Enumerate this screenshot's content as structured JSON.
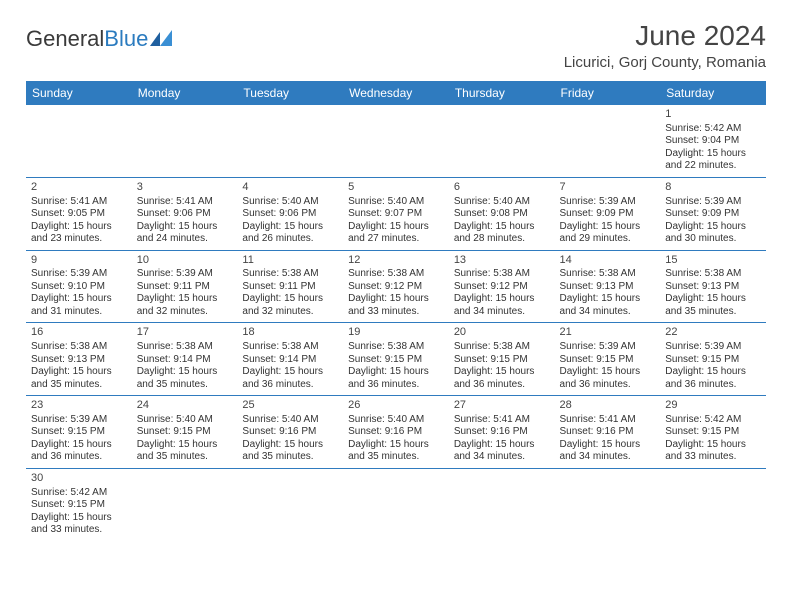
{
  "logo": {
    "text_gray": "General",
    "text_blue": "Blue"
  },
  "header": {
    "title": "June 2024",
    "location": "Licurici, Gorj County, Romania"
  },
  "colors": {
    "header_bg": "#2f7bbf",
    "header_fg": "#ffffff",
    "border": "#2f7bbf"
  },
  "weekdays": [
    "Sunday",
    "Monday",
    "Tuesday",
    "Wednesday",
    "Thursday",
    "Friday",
    "Saturday"
  ],
  "weeks": [
    [
      null,
      null,
      null,
      null,
      null,
      null,
      {
        "n": "1",
        "rise": "Sunrise: 5:42 AM",
        "set": "Sunset: 9:04 PM",
        "day": "Daylight: 15 hours and 22 minutes."
      }
    ],
    [
      {
        "n": "2",
        "rise": "Sunrise: 5:41 AM",
        "set": "Sunset: 9:05 PM",
        "day": "Daylight: 15 hours and 23 minutes."
      },
      {
        "n": "3",
        "rise": "Sunrise: 5:41 AM",
        "set": "Sunset: 9:06 PM",
        "day": "Daylight: 15 hours and 24 minutes."
      },
      {
        "n": "4",
        "rise": "Sunrise: 5:40 AM",
        "set": "Sunset: 9:06 PM",
        "day": "Daylight: 15 hours and 26 minutes."
      },
      {
        "n": "5",
        "rise": "Sunrise: 5:40 AM",
        "set": "Sunset: 9:07 PM",
        "day": "Daylight: 15 hours and 27 minutes."
      },
      {
        "n": "6",
        "rise": "Sunrise: 5:40 AM",
        "set": "Sunset: 9:08 PM",
        "day": "Daylight: 15 hours and 28 minutes."
      },
      {
        "n": "7",
        "rise": "Sunrise: 5:39 AM",
        "set": "Sunset: 9:09 PM",
        "day": "Daylight: 15 hours and 29 minutes."
      },
      {
        "n": "8",
        "rise": "Sunrise: 5:39 AM",
        "set": "Sunset: 9:09 PM",
        "day": "Daylight: 15 hours and 30 minutes."
      }
    ],
    [
      {
        "n": "9",
        "rise": "Sunrise: 5:39 AM",
        "set": "Sunset: 9:10 PM",
        "day": "Daylight: 15 hours and 31 minutes."
      },
      {
        "n": "10",
        "rise": "Sunrise: 5:39 AM",
        "set": "Sunset: 9:11 PM",
        "day": "Daylight: 15 hours and 32 minutes."
      },
      {
        "n": "11",
        "rise": "Sunrise: 5:38 AM",
        "set": "Sunset: 9:11 PM",
        "day": "Daylight: 15 hours and 32 minutes."
      },
      {
        "n": "12",
        "rise": "Sunrise: 5:38 AM",
        "set": "Sunset: 9:12 PM",
        "day": "Daylight: 15 hours and 33 minutes."
      },
      {
        "n": "13",
        "rise": "Sunrise: 5:38 AM",
        "set": "Sunset: 9:12 PM",
        "day": "Daylight: 15 hours and 34 minutes."
      },
      {
        "n": "14",
        "rise": "Sunrise: 5:38 AM",
        "set": "Sunset: 9:13 PM",
        "day": "Daylight: 15 hours and 34 minutes."
      },
      {
        "n": "15",
        "rise": "Sunrise: 5:38 AM",
        "set": "Sunset: 9:13 PM",
        "day": "Daylight: 15 hours and 35 minutes."
      }
    ],
    [
      {
        "n": "16",
        "rise": "Sunrise: 5:38 AM",
        "set": "Sunset: 9:13 PM",
        "day": "Daylight: 15 hours and 35 minutes."
      },
      {
        "n": "17",
        "rise": "Sunrise: 5:38 AM",
        "set": "Sunset: 9:14 PM",
        "day": "Daylight: 15 hours and 35 minutes."
      },
      {
        "n": "18",
        "rise": "Sunrise: 5:38 AM",
        "set": "Sunset: 9:14 PM",
        "day": "Daylight: 15 hours and 36 minutes."
      },
      {
        "n": "19",
        "rise": "Sunrise: 5:38 AM",
        "set": "Sunset: 9:15 PM",
        "day": "Daylight: 15 hours and 36 minutes."
      },
      {
        "n": "20",
        "rise": "Sunrise: 5:38 AM",
        "set": "Sunset: 9:15 PM",
        "day": "Daylight: 15 hours and 36 minutes."
      },
      {
        "n": "21",
        "rise": "Sunrise: 5:39 AM",
        "set": "Sunset: 9:15 PM",
        "day": "Daylight: 15 hours and 36 minutes."
      },
      {
        "n": "22",
        "rise": "Sunrise: 5:39 AM",
        "set": "Sunset: 9:15 PM",
        "day": "Daylight: 15 hours and 36 minutes."
      }
    ],
    [
      {
        "n": "23",
        "rise": "Sunrise: 5:39 AM",
        "set": "Sunset: 9:15 PM",
        "day": "Daylight: 15 hours and 36 minutes."
      },
      {
        "n": "24",
        "rise": "Sunrise: 5:40 AM",
        "set": "Sunset: 9:15 PM",
        "day": "Daylight: 15 hours and 35 minutes."
      },
      {
        "n": "25",
        "rise": "Sunrise: 5:40 AM",
        "set": "Sunset: 9:16 PM",
        "day": "Daylight: 15 hours and 35 minutes."
      },
      {
        "n": "26",
        "rise": "Sunrise: 5:40 AM",
        "set": "Sunset: 9:16 PM",
        "day": "Daylight: 15 hours and 35 minutes."
      },
      {
        "n": "27",
        "rise": "Sunrise: 5:41 AM",
        "set": "Sunset: 9:16 PM",
        "day": "Daylight: 15 hours and 34 minutes."
      },
      {
        "n": "28",
        "rise": "Sunrise: 5:41 AM",
        "set": "Sunset: 9:16 PM",
        "day": "Daylight: 15 hours and 34 minutes."
      },
      {
        "n": "29",
        "rise": "Sunrise: 5:42 AM",
        "set": "Sunset: 9:15 PM",
        "day": "Daylight: 15 hours and 33 minutes."
      }
    ],
    [
      {
        "n": "30",
        "rise": "Sunrise: 5:42 AM",
        "set": "Sunset: 9:15 PM",
        "day": "Daylight: 15 hours and 33 minutes."
      },
      null,
      null,
      null,
      null,
      null,
      null
    ]
  ]
}
